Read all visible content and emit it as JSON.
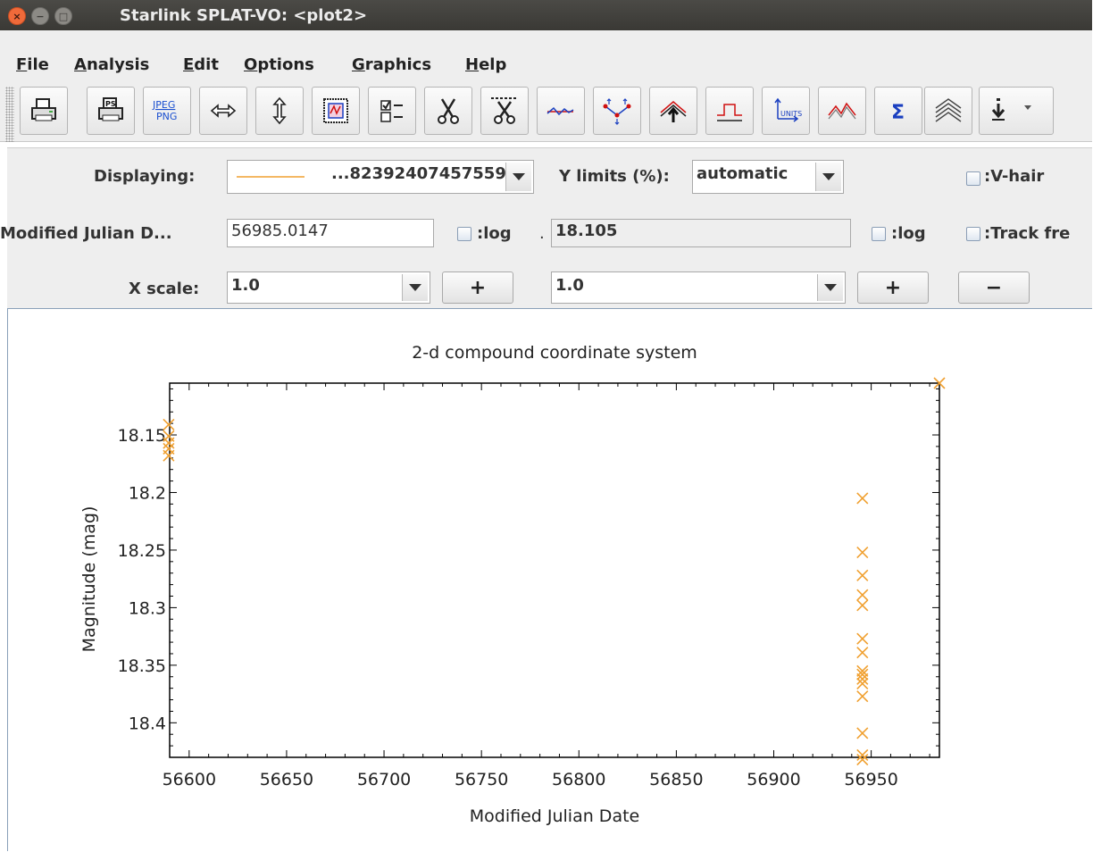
{
  "window": {
    "title": "Starlink SPLAT-VO: <plot2>",
    "buttons": {
      "close": "×",
      "minimize": "−",
      "maximize": "□"
    }
  },
  "menu": [
    {
      "label": "File",
      "mnemonic": "F",
      "rest": "ile"
    },
    {
      "label": "Analysis",
      "mnemonic": "A",
      "rest": "nalysis"
    },
    {
      "label": "Edit",
      "mnemonic": "E",
      "rest": "dit"
    },
    {
      "label": "Options",
      "mnemonic": "O",
      "rest": "ptions"
    },
    {
      "label": "Graphics",
      "mnemonic": "G",
      "rest": "raphics"
    },
    {
      "label": "Help",
      "mnemonic": "H",
      "rest": "elp"
    }
  ],
  "toolbar": {
    "jpeg_top": "JPEG",
    "jpeg_bottom": "PNG",
    "ps_label": "PS",
    "units_label": "UNITS",
    "sigma": "Σ",
    "icons": [
      "print-icon",
      "print-postscript-icon",
      "jpeg-png-icon",
      "fit-width-icon",
      "fit-height-icon",
      "viewport-icon",
      "display-options-icon",
      "cut-icon",
      "cut-all-icon",
      "line-fit-icon",
      "interpolate-icon",
      "flux-icon",
      "filter-icon",
      "units-icon",
      "spectral-lines-icon",
      "statistics-icon",
      "stack-icon",
      "save-menu-icon"
    ]
  },
  "controls": {
    "displaying_label": "Displaying:",
    "displaying_value": "...82392407457559",
    "ylimits_label": "Y limits (%):",
    "ylimits_value": "automatic",
    "vhair_label": ":V-hair",
    "x_coord_label": "Modified Julian D...",
    "x_coord_value": "56985.0147",
    "log_label": ":log",
    "dot": ".",
    "y_coord_value": "18.105",
    "log_label2": ":log",
    "track_label": ":Track fre",
    "xscale_label": "X scale:",
    "xscale_value": "1.0",
    "yscale_value": "1.0",
    "plus": "+",
    "plus2": "+",
    "minus": "−"
  },
  "chart_data": {
    "type": "scatter",
    "title": "2-d compound coordinate system",
    "xlabel": "Modified Julian Date",
    "ylabel": "Magnitude (mag)",
    "xlim": [
      56590,
      56985
    ],
    "ylim": [
      18.105,
      18.43
    ],
    "y_inverted": true,
    "xticks": [
      56600,
      56650,
      56700,
      56750,
      56800,
      56850,
      56900,
      56950
    ],
    "yticks": [
      18.15,
      18.2,
      18.25,
      18.3,
      18.35,
      18.4
    ],
    "ytick_labels": [
      "18.15",
      "18.2",
      "18.25",
      "18.3",
      "18.35",
      "18.4"
    ],
    "series": [
      {
        "marker": "x",
        "color": "#f0a030",
        "points": [
          [
            56589.5,
            18.141
          ],
          [
            56589.5,
            18.151
          ],
          [
            56589.5,
            18.157
          ],
          [
            56589.5,
            18.162
          ],
          [
            56589.5,
            18.168
          ],
          [
            56945.5,
            18.205
          ],
          [
            56945.5,
            18.252
          ],
          [
            56945.5,
            18.272
          ],
          [
            56945.5,
            18.289
          ],
          [
            56945.5,
            18.298
          ],
          [
            56945.5,
            18.327
          ],
          [
            56945.5,
            18.339
          ],
          [
            56945.5,
            18.355
          ],
          [
            56945.5,
            18.358
          ],
          [
            56945.5,
            18.362
          ],
          [
            56945.5,
            18.366
          ],
          [
            56945.5,
            18.377
          ],
          [
            56945.5,
            18.409
          ],
          [
            56945.5,
            18.428
          ],
          [
            56945.5,
            18.432
          ],
          [
            56985.0,
            18.105
          ]
        ]
      }
    ]
  }
}
